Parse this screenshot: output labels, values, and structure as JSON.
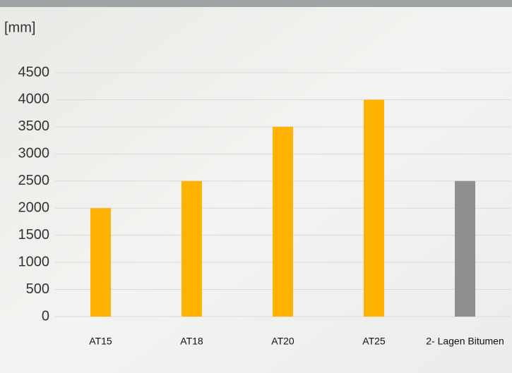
{
  "chart_data": {
    "type": "bar",
    "y_label": "[mm]",
    "categories": [
      "AT15",
      "AT18",
      "AT20",
      "AT25",
      "2- Lagen Bitumen"
    ],
    "values": [
      2000,
      2500,
      3500,
      4000,
      2500
    ],
    "colors": [
      "#ffb300",
      "#ffb300",
      "#ffb300",
      "#ffb300",
      "#8f8f8f"
    ],
    "ylim": [
      0,
      4500
    ],
    "yticks": [
      0,
      500,
      1000,
      1500,
      2000,
      2500,
      3000,
      3500,
      4000,
      4500
    ],
    "grid": true
  }
}
